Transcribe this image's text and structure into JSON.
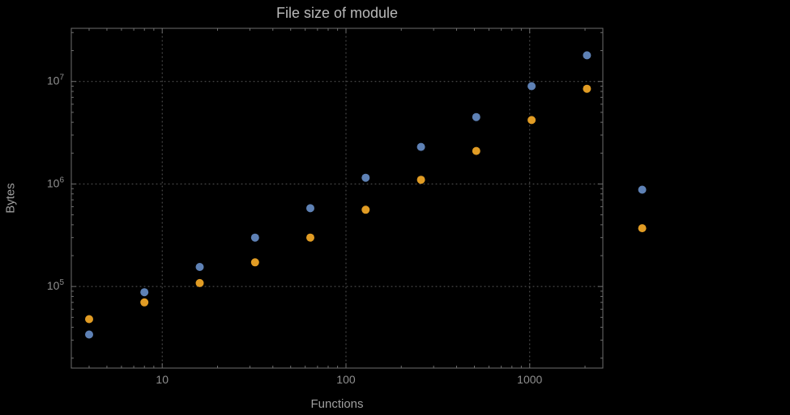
{
  "chart_data": {
    "type": "scatter",
    "title": "File size of module",
    "xlabel": "Functions",
    "ylabel": "Bytes",
    "xscale": "log",
    "yscale": "log",
    "xlim": [
      3.2,
      2500
    ],
    "ylim": [
      16000,
      33000000
    ],
    "x_major_ticks": [
      10,
      100,
      1000
    ],
    "x_tick_labels": [
      "10",
      "100",
      "1000"
    ],
    "y_major_ticks": [
      100000,
      1000000,
      10000000
    ],
    "y_tick_exponents": [
      5,
      6,
      7
    ],
    "grid": "dotted at major ticks, both axes",
    "legend": "none",
    "point_radius": 5,
    "series": [
      {
        "name": "series-blue",
        "color": "#5e81b5",
        "points": [
          [
            4,
            34000
          ],
          [
            8,
            88000
          ],
          [
            16,
            155000
          ],
          [
            32,
            300000
          ],
          [
            64,
            580000
          ],
          [
            128,
            1150000
          ],
          [
            256,
            2300000
          ],
          [
            512,
            4500000
          ],
          [
            1024,
            9000000
          ],
          [
            2048,
            18000000
          ],
          [
            4096,
            880000
          ]
        ]
      },
      {
        "name": "series-orange",
        "color": "#e19c24",
        "points": [
          [
            4,
            48000
          ],
          [
            8,
            70000
          ],
          [
            16,
            108000
          ],
          [
            32,
            172000
          ],
          [
            64,
            300000
          ],
          [
            128,
            560000
          ],
          [
            256,
            1100000
          ],
          [
            512,
            2100000
          ],
          [
            1024,
            4200000
          ],
          [
            2048,
            8500000
          ],
          [
            4096,
            370000
          ]
        ]
      }
    ]
  },
  "colors": {
    "background": "#000000",
    "frame": "#6e6e6e",
    "grid": "#5a5a5a",
    "tick_text": "#8f8f8f",
    "label_text": "#9f9f9f",
    "title_text": "#b9b9b9"
  }
}
